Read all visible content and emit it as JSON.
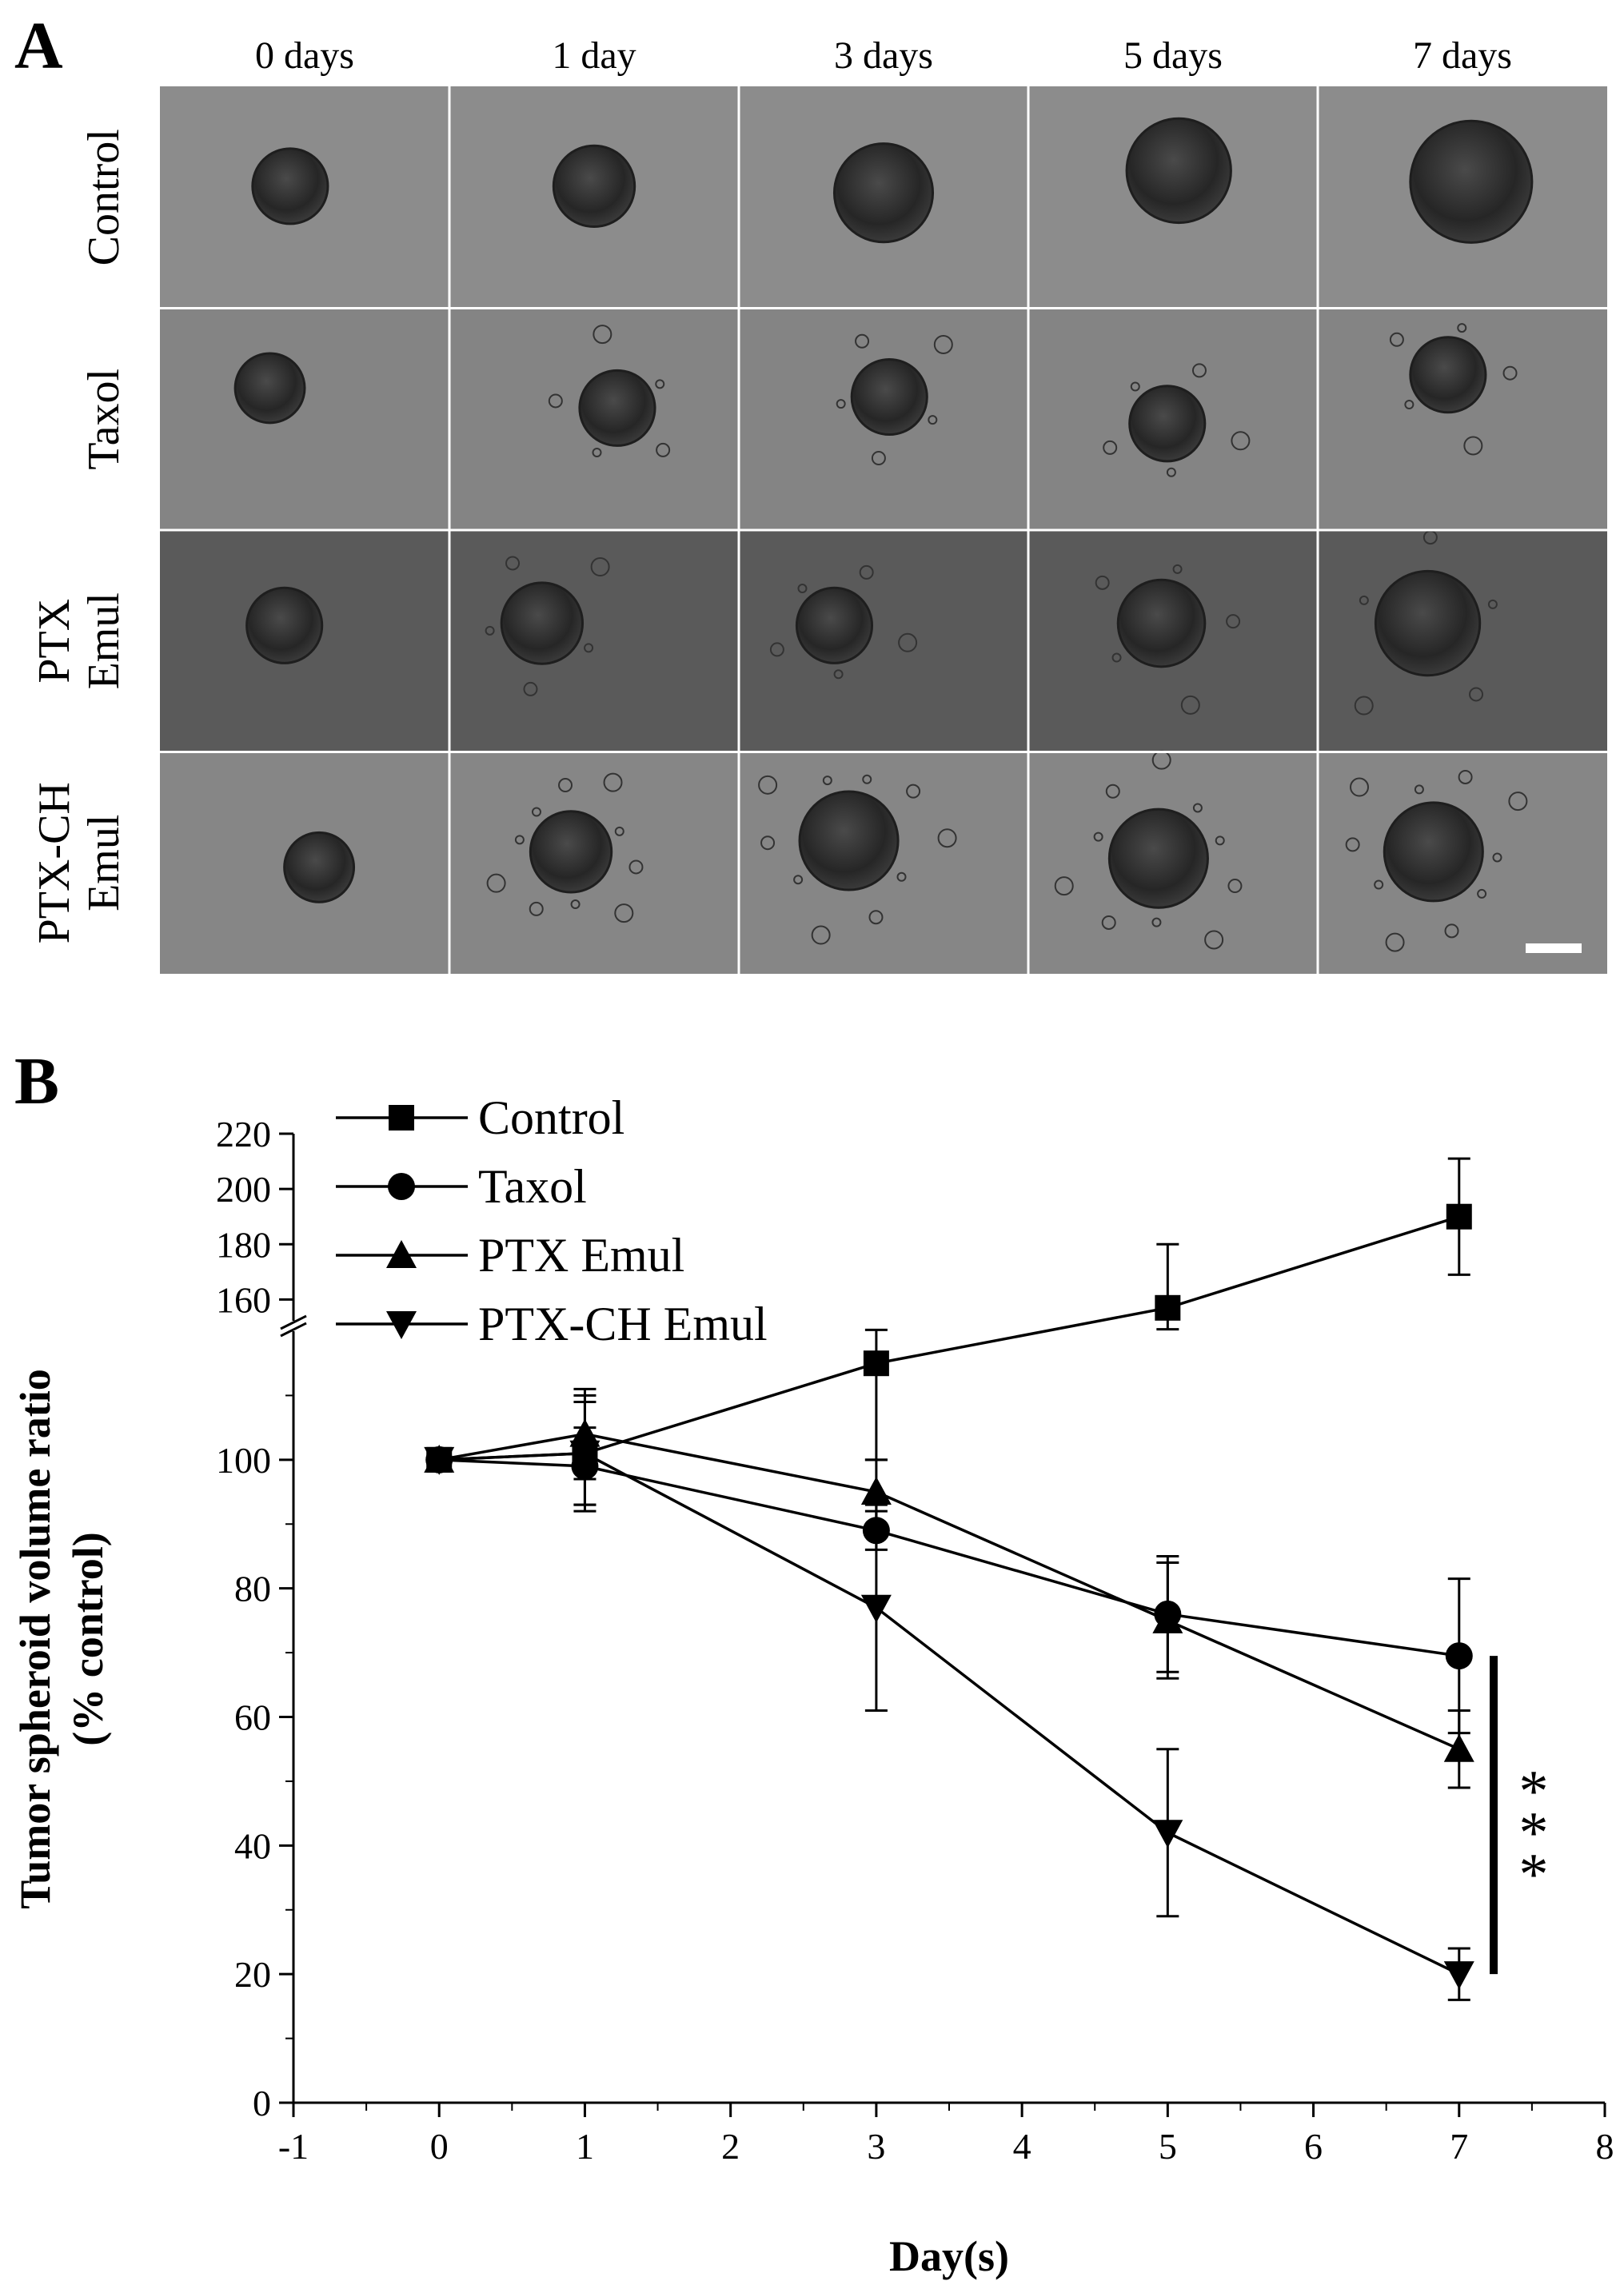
{
  "panel_a": {
    "letter": "A",
    "columns": [
      "0 days",
      "1 day",
      "3 days",
      "5 days",
      "7 days"
    ],
    "rows": [
      {
        "lines": [
          "Control"
        ],
        "tone": "#8c8c8c"
      },
      {
        "lines": [
          "Taxol"
        ],
        "tone": "#848484"
      },
      {
        "lines": [
          "PTX",
          "Emul"
        ],
        "tone": "#5a5a5a"
      },
      {
        "lines": [
          "PTX-CH",
          "Emul"
        ],
        "tone": "#868686"
      }
    ],
    "spheroid_color": "#2a2a2a"
  },
  "panel_b": {
    "letter": "B",
    "significance": "***"
  },
  "chart_data": {
    "type": "line",
    "xlabel": "Day(s)",
    "ylabel_lines": [
      "Tumor spheroid volume ratio",
      "(% control)"
    ],
    "xlim": [
      -1,
      8
    ],
    "xticks": [
      "-1",
      "0",
      "1",
      "2",
      "3",
      "4",
      "5",
      "6",
      "7",
      "8"
    ],
    "ylim_lower": [
      0,
      120
    ],
    "yticks_lower": [
      "0",
      "20",
      "40",
      "60",
      "80",
      "100"
    ],
    "ylim_upper": [
      150,
      220
    ],
    "yticks_upper": [
      "160",
      "180",
      "200",
      "220"
    ],
    "broken_y_axis": true,
    "x": [
      0,
      1,
      3,
      5,
      7
    ],
    "series": [
      {
        "name": "Control",
        "marker": "square",
        "values": [
          100,
          101,
          115,
          157,
          190
        ],
        "errors": [
          0,
          9,
          15,
          23,
          21
        ]
      },
      {
        "name": "Taxol",
        "marker": "circle",
        "values": [
          100,
          99,
          89,
          76,
          69.5
        ],
        "errors": [
          0,
          6,
          3,
          9,
          12
        ]
      },
      {
        "name": "PTX Emul",
        "marker": "triangle-up",
        "values": [
          100,
          104,
          95,
          75,
          55
        ],
        "errors": [
          0,
          7,
          5,
          9,
          6
        ]
      },
      {
        "name": "PTX-CH Emul",
        "marker": "triangle-down",
        "values": [
          100,
          101,
          77,
          42,
          20
        ],
        "errors": [
          0,
          8,
          16,
          13,
          4
        ]
      }
    ],
    "legend_position": "top-left",
    "line_color": "#000000"
  }
}
